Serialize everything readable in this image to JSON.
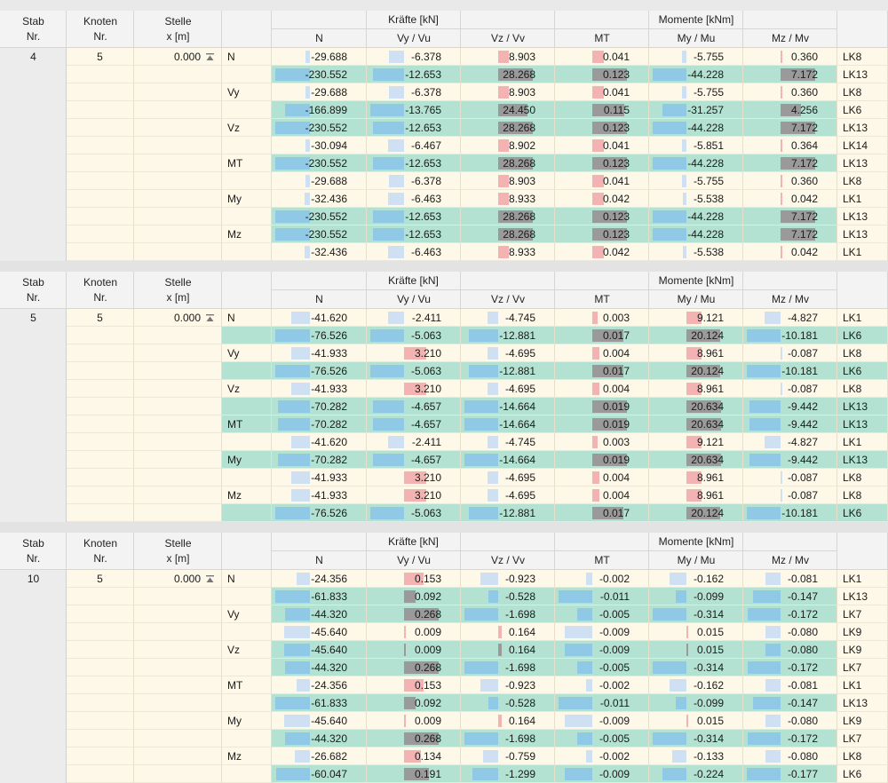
{
  "colors": {
    "row_normal": "#fdf8e8",
    "row_highlight": "#b3e2d3",
    "bar_neg": "#8fc9e6",
    "bar_neg_light": "#cfe0f3",
    "bar_pos": "#f4b3b3",
    "bar_grey": "#9a9a9a"
  },
  "headers": {
    "stab": "Stab",
    "nr": "Nr.",
    "knoten": "Knoten",
    "stelle": "Stelle",
    "x_unit": "x [m]",
    "kraefte": "Kräfte [kN]",
    "momente": "Momente [kNm]",
    "N": "N",
    "vy": "Vy / Vu",
    "vz": "Vz / Vv",
    "mt": "MT",
    "my": "My / Mu",
    "mz": "Mz / Mv"
  },
  "blocks": [
    {
      "stab": "4",
      "knoten": "5",
      "stelle": "0.000",
      "rows": [
        {
          "label": "N",
          "hl": false,
          "N": "-29.688",
          "vy": "-6.378",
          "vz": "8.903",
          "mt": "0.041",
          "my": "-5.755",
          "mz": "0.360",
          "lk": "LK8"
        },
        {
          "label": "",
          "hl": true,
          "N": "-230.552",
          "vy": "-12.653",
          "vz": "28.268",
          "mt": "0.123",
          "my": "-44.228",
          "mz": "7.172",
          "lk": "LK13"
        },
        {
          "label": "Vy",
          "hl": false,
          "N": "-29.688",
          "vy": "-6.378",
          "vz": "8.903",
          "mt": "0.041",
          "my": "-5.755",
          "mz": "0.360",
          "lk": "LK8"
        },
        {
          "label": "",
          "hl": true,
          "N": "-166.899",
          "vy": "-13.765",
          "vz": "24.450",
          "mt": "0.115",
          "my": "-31.257",
          "mz": "4.256",
          "lk": "LK6"
        },
        {
          "label": "Vz",
          "hl": true,
          "N": "-230.552",
          "vy": "-12.653",
          "vz": "28.268",
          "mt": "0.123",
          "my": "-44.228",
          "mz": "7.172",
          "lk": "LK13"
        },
        {
          "label": "",
          "hl": false,
          "N": "-30.094",
          "vy": "-6.467",
          "vz": "8.902",
          "mt": "0.041",
          "my": "-5.851",
          "mz": "0.364",
          "lk": "LK14"
        },
        {
          "label": "MT",
          "hl": true,
          "N": "-230.552",
          "vy": "-12.653",
          "vz": "28.268",
          "mt": "0.123",
          "my": "-44.228",
          "mz": "7.172",
          "lk": "LK13"
        },
        {
          "label": "",
          "hl": false,
          "N": "-29.688",
          "vy": "-6.378",
          "vz": "8.903",
          "mt": "0.041",
          "my": "-5.755",
          "mz": "0.360",
          "lk": "LK8"
        },
        {
          "label": "My",
          "hl": false,
          "N": "-32.436",
          "vy": "-6.463",
          "vz": "8.933",
          "mt": "0.042",
          "my": "-5.538",
          "mz": "0.042",
          "lk": "LK1"
        },
        {
          "label": "",
          "hl": true,
          "N": "-230.552",
          "vy": "-12.653",
          "vz": "28.268",
          "mt": "0.123",
          "my": "-44.228",
          "mz": "7.172",
          "lk": "LK13"
        },
        {
          "label": "Mz",
          "hl": true,
          "N": "-230.552",
          "vy": "-12.653",
          "vz": "28.268",
          "mt": "0.123",
          "my": "-44.228",
          "mz": "7.172",
          "lk": "LK13"
        },
        {
          "label": "",
          "hl": false,
          "N": "-32.436",
          "vy": "-6.463",
          "vz": "8.933",
          "mt": "0.042",
          "my": "-5.538",
          "mz": "0.042",
          "lk": "LK1"
        }
      ]
    },
    {
      "stab": "5",
      "knoten": "5",
      "stelle": "0.000",
      "rows": [
        {
          "label": "N",
          "hl": false,
          "N": "-41.620",
          "vy": "-2.411",
          "vz": "-4.745",
          "mt": "0.003",
          "my": "9.121",
          "mz": "-4.827",
          "lk": "LK1"
        },
        {
          "label": "",
          "hl": true,
          "N": "-76.526",
          "vy": "-5.063",
          "vz": "-12.881",
          "mt": "0.017",
          "my": "20.124",
          "mz": "-10.181",
          "lk": "LK6"
        },
        {
          "label": "Vy",
          "hl": false,
          "N": "-41.933",
          "vy": "3.210",
          "vz": "-4.695",
          "mt": "0.004",
          "my": "8.961",
          "mz": "-0.087",
          "lk": "LK8"
        },
        {
          "label": "",
          "hl": true,
          "N": "-76.526",
          "vy": "-5.063",
          "vz": "-12.881",
          "mt": "0.017",
          "my": "20.124",
          "mz": "-10.181",
          "lk": "LK6"
        },
        {
          "label": "Vz",
          "hl": false,
          "N": "-41.933",
          "vy": "3.210",
          "vz": "-4.695",
          "mt": "0.004",
          "my": "8.961",
          "mz": "-0.087",
          "lk": "LK8"
        },
        {
          "label": "",
          "hl": true,
          "N": "-70.282",
          "vy": "-4.657",
          "vz": "-14.664",
          "mt": "0.019",
          "my": "20.634",
          "mz": "-9.442",
          "lk": "LK13"
        },
        {
          "label": "MT",
          "hl": true,
          "N": "-70.282",
          "vy": "-4.657",
          "vz": "-14.664",
          "mt": "0.019",
          "my": "20.634",
          "mz": "-9.442",
          "lk": "LK13"
        },
        {
          "label": "",
          "hl": false,
          "N": "-41.620",
          "vy": "-2.411",
          "vz": "-4.745",
          "mt": "0.003",
          "my": "9.121",
          "mz": "-4.827",
          "lk": "LK1"
        },
        {
          "label": "My",
          "hl": true,
          "N": "-70.282",
          "vy": "-4.657",
          "vz": "-14.664",
          "mt": "0.019",
          "my": "20.634",
          "mz": "-9.442",
          "lk": "LK13"
        },
        {
          "label": "",
          "hl": false,
          "N": "-41.933",
          "vy": "3.210",
          "vz": "-4.695",
          "mt": "0.004",
          "my": "8.961",
          "mz": "-0.087",
          "lk": "LK8"
        },
        {
          "label": "Mz",
          "hl": false,
          "N": "-41.933",
          "vy": "3.210",
          "vz": "-4.695",
          "mt": "0.004",
          "my": "8.961",
          "mz": "-0.087",
          "lk": "LK8"
        },
        {
          "label": "",
          "hl": true,
          "N": "-76.526",
          "vy": "-5.063",
          "vz": "-12.881",
          "mt": "0.017",
          "my": "20.124",
          "mz": "-10.181",
          "lk": "LK6"
        }
      ]
    },
    {
      "stab": "10",
      "knoten": "5",
      "stelle": "0.000",
      "rows": [
        {
          "label": "N",
          "hl": false,
          "N": "-24.356",
          "vy": "0.153",
          "vz": "-0.923",
          "mt": "-0.002",
          "my": "-0.162",
          "mz": "-0.081",
          "lk": "LK1"
        },
        {
          "label": "",
          "hl": true,
          "N": "-61.833",
          "vy": "0.092",
          "vz": "-0.528",
          "mt": "-0.011",
          "my": "-0.099",
          "mz": "-0.147",
          "lk": "LK13"
        },
        {
          "label": "Vy",
          "hl": true,
          "N": "-44.320",
          "vy": "0.268",
          "vz": "-1.698",
          "mt": "-0.005",
          "my": "-0.314",
          "mz": "-0.172",
          "lk": "LK7"
        },
        {
          "label": "",
          "hl": false,
          "N": "-45.640",
          "vy": "0.009",
          "vz": "0.164",
          "mt": "-0.009",
          "my": "0.015",
          "mz": "-0.080",
          "lk": "LK9"
        },
        {
          "label": "Vz",
          "hl": true,
          "N": "-45.640",
          "vy": "0.009",
          "vz": "0.164",
          "mt": "-0.009",
          "my": "0.015",
          "mz": "-0.080",
          "lk": "LK9"
        },
        {
          "label": "",
          "hl": true,
          "N": "-44.320",
          "vy": "0.268",
          "vz": "-1.698",
          "mt": "-0.005",
          "my": "-0.314",
          "mz": "-0.172",
          "lk": "LK7"
        },
        {
          "label": "MT",
          "hl": false,
          "N": "-24.356",
          "vy": "0.153",
          "vz": "-0.923",
          "mt": "-0.002",
          "my": "-0.162",
          "mz": "-0.081",
          "lk": "LK1"
        },
        {
          "label": "",
          "hl": true,
          "N": "-61.833",
          "vy": "0.092",
          "vz": "-0.528",
          "mt": "-0.011",
          "my": "-0.099",
          "mz": "-0.147",
          "lk": "LK13"
        },
        {
          "label": "My",
          "hl": false,
          "N": "-45.640",
          "vy": "0.009",
          "vz": "0.164",
          "mt": "-0.009",
          "my": "0.015",
          "mz": "-0.080",
          "lk": "LK9"
        },
        {
          "label": "",
          "hl": true,
          "N": "-44.320",
          "vy": "0.268",
          "vz": "-1.698",
          "mt": "-0.005",
          "my": "-0.314",
          "mz": "-0.172",
          "lk": "LK7"
        },
        {
          "label": "Mz",
          "hl": false,
          "N": "-26.682",
          "vy": "0.134",
          "vz": "-0.759",
          "mt": "-0.002",
          "my": "-0.133",
          "mz": "-0.080",
          "lk": "LK8"
        },
        {
          "label": "",
          "hl": true,
          "N": "-60.047",
          "vy": "0.191",
          "vz": "-1.299",
          "mt": "-0.009",
          "my": "-0.224",
          "mz": "-0.177",
          "lk": "LK6"
        }
      ]
    }
  ]
}
